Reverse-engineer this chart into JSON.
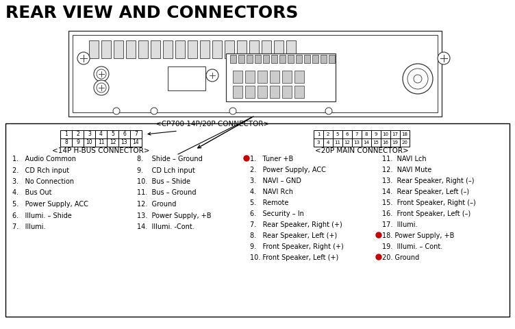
{
  "title": "REAR VIEW AND CONNECTORS",
  "title_fontsize": 18,
  "connector_label": "<CP700 14P/20P CONNECTOR>",
  "hbus_label": "<14P H-BUS CONNECTOR>",
  "main_label": "<20P MAIN CONNECTOR>",
  "hbus_pins_row1": [
    "1",
    "2",
    "3",
    "4",
    "5",
    "6",
    "7"
  ],
  "hbus_pins_row2": [
    "8",
    "9",
    "10",
    "11",
    "12",
    "13",
    "14"
  ],
  "main_pins_row1a": [
    "1",
    "2"
  ],
  "main_pins_row1b": [
    "5",
    "6",
    "7",
    "8",
    "9",
    "10"
  ],
  "main_pins_row1c": [
    "17",
    "18"
  ],
  "main_pins_row2a": [
    "3",
    "4"
  ],
  "main_pins_row2b": [
    "11",
    "12",
    "13",
    "14",
    "15",
    "16"
  ],
  "main_pins_row2c": [
    "19",
    "20"
  ],
  "hbus_entries_left": [
    "1.   Audio Common",
    "2.   CD Rch input",
    "3.   No Connection",
    "4.   Bus Out",
    "5.   Power Supply, ACC",
    "6.   Illumi. – Shide",
    "7.   Illumi."
  ],
  "hbus_entries_right": [
    "8.    Shide – Ground",
    "9.    CD Lch input",
    "10.  Bus – Shide",
    "11.  Bus – Ground",
    "12.  Ground",
    "13.  Power Supply, +B",
    "14.  Illumi. -Cont."
  ],
  "main_entries_left": [
    "●1.   Tuner +B",
    "2.   Power Supply, ACC",
    "3.   NAVI – GND",
    "4.   NAVI Rch",
    "5.   Remote",
    "6.   Security – In",
    "7.   Rear Speaker, Right (+)",
    "8.   Rear Speaker, Left (+)",
    "9.   Front Speaker, Right (+)",
    "10. Front Speaker, Left (+)"
  ],
  "main_entries_right": [
    "11.  NAVI Lch",
    "12.  NAVI Mute",
    "13.  Rear Speaker, Right (–)",
    "14.  Rear Speaker, Left (–)",
    "15.  Front Speaker, Right (–)",
    "16.  Front Speaker, Left (–)",
    "17.  Illumi.",
    "●18. Power Supply, +B",
    "19.  Illumi. – Cont.",
    "●20. Ground"
  ],
  "bg_color": "#ffffff",
  "box_color": "#000000",
  "text_color": "#000000",
  "red_color": "#cc0000",
  "unit_lw": 1.0,
  "unit_color": "#333333"
}
